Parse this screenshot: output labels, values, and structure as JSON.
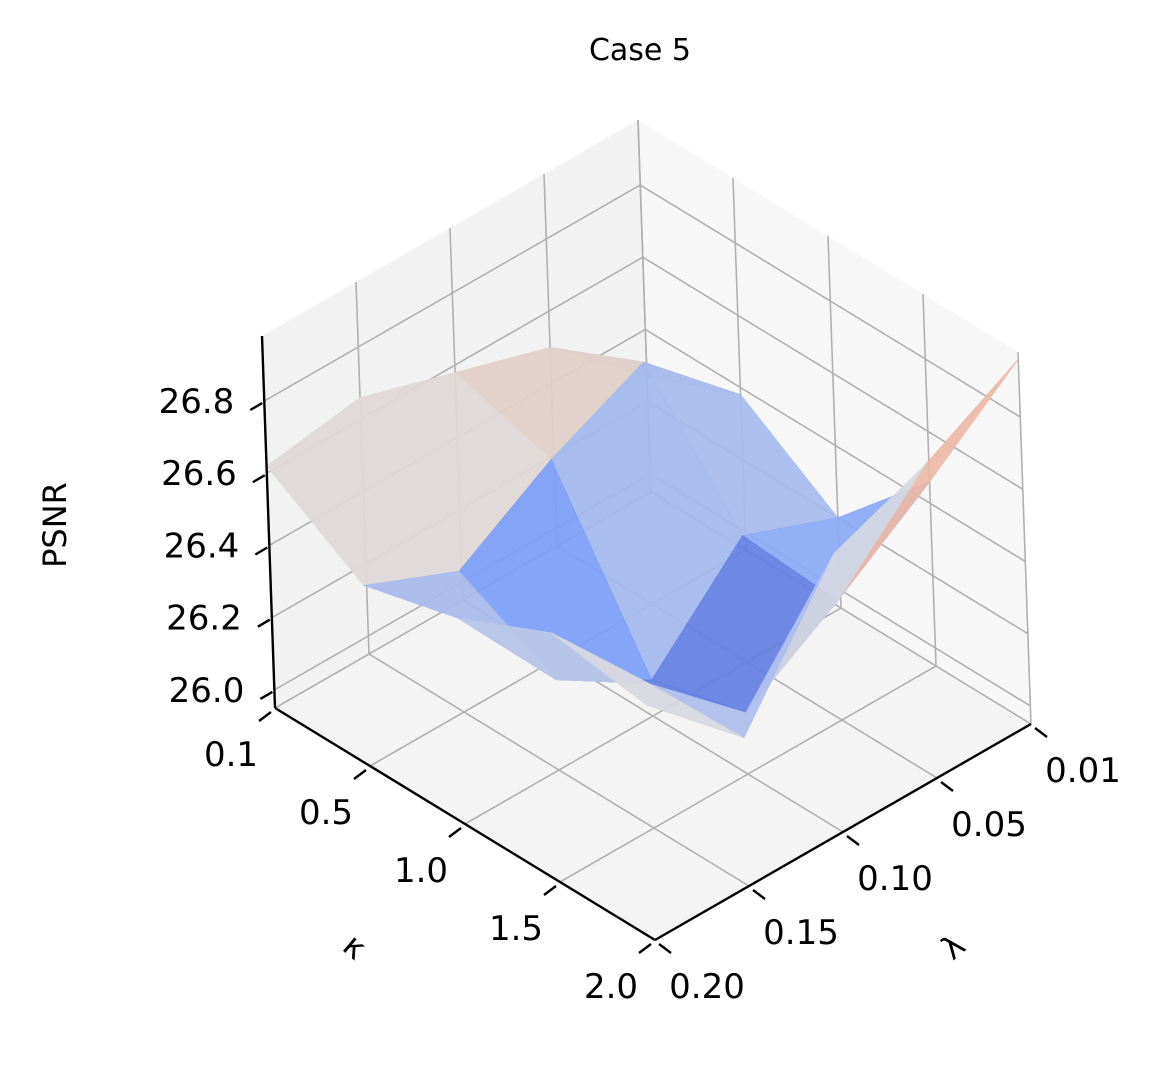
{
  "chart_data": {
    "type": "surface",
    "title": "Case 5",
    "xlabel": "κ",
    "ylabel": "λ",
    "zlabel": "PSNR",
    "colormap": "coolwarm",
    "x_tick_labels": [
      "0.1",
      "0.5",
      "1.0",
      "1.5",
      "2.0"
    ],
    "y_tick_labels": [
      "0.01",
      "0.05",
      "0.10",
      "0.15",
      "0.20"
    ],
    "z_tick_labels": [
      "26.0",
      "26.2",
      "26.4",
      "26.6",
      "26.8"
    ],
    "zlim": [
      25.95,
      26.98
    ],
    "grid": true,
    "kappa_values": [
      0.1,
      0.5,
      1.0,
      1.5,
      2.0
    ],
    "lambda_values": [
      0.01,
      0.05,
      0.1,
      0.15,
      0.2
    ],
    "psnr": [
      [
        26.27,
        26.5,
        26.58,
        26.66,
        26.62
      ],
      [
        26.38,
        26.62,
        26.5,
        26.34,
        26.45
      ],
      [
        26.2,
        26.3,
        26.05,
        26.2,
        26.52
      ],
      [
        26.46,
        26.28,
        26.12,
        26.35,
        26.64
      ],
      [
        26.96,
        26.82,
        26.72,
        26.36,
        26.6
      ]
    ]
  }
}
